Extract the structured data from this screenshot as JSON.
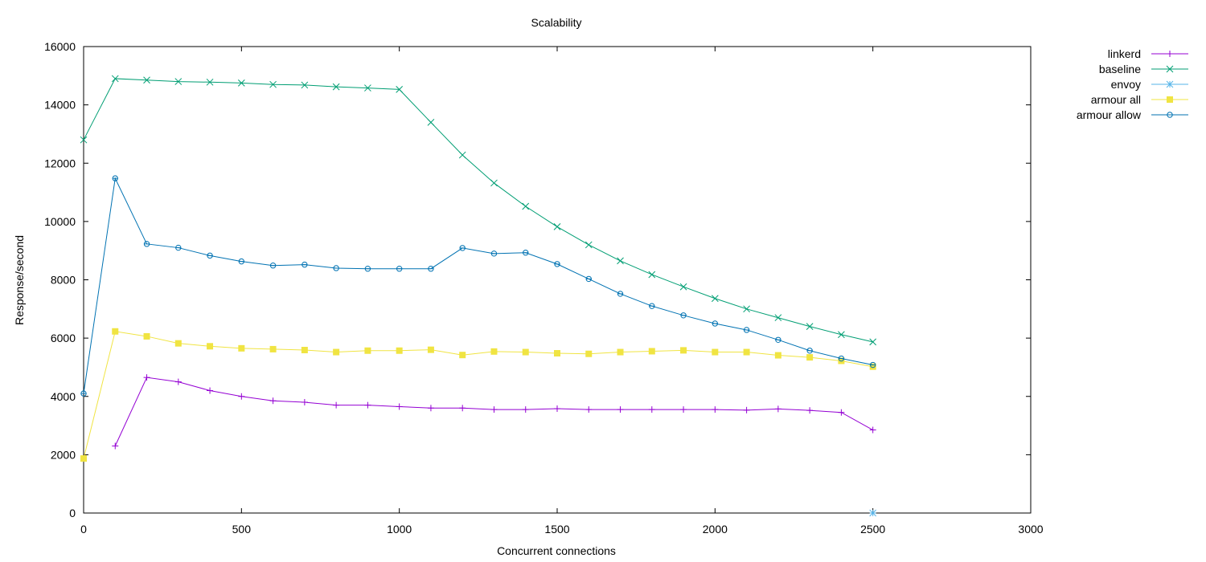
{
  "chart_data": {
    "type": "line",
    "title": "Scalability",
    "xlabel": "Concurrent connections",
    "ylabel": "Response/second",
    "xlim": [
      0,
      3000
    ],
    "ylim": [
      0,
      16000
    ],
    "xticks": [
      0,
      500,
      1000,
      1500,
      2000,
      2500,
      3000
    ],
    "yticks": [
      0,
      2000,
      4000,
      6000,
      8000,
      10000,
      12000,
      14000,
      16000
    ],
    "grid": false,
    "legend_position": "top-right, outside plot",
    "series": [
      {
        "name": "linkerd",
        "color": "#9400d3",
        "marker": "plus",
        "x": [
          100,
          200,
          300,
          400,
          500,
          600,
          700,
          800,
          900,
          1000,
          1100,
          1200,
          1300,
          1400,
          1500,
          1600,
          1700,
          1800,
          1900,
          2000,
          2100,
          2200,
          2300,
          2400,
          2500
        ],
        "y": [
          2300,
          4650,
          4500,
          4200,
          4000,
          3850,
          3800,
          3700,
          3700,
          3650,
          3600,
          3600,
          3550,
          3550,
          3580,
          3550,
          3550,
          3550,
          3550,
          3550,
          3530,
          3570,
          3520,
          3450,
          2850
        ]
      },
      {
        "name": "baseline",
        "color": "#009e73",
        "marker": "x",
        "x": [
          0,
          100,
          200,
          300,
          400,
          500,
          600,
          700,
          800,
          900,
          1000,
          1100,
          1200,
          1300,
          1400,
          1500,
          1600,
          1700,
          1800,
          1900,
          2000,
          2100,
          2200,
          2300,
          2400,
          2500
        ],
        "y": [
          12800,
          14900,
          14850,
          14800,
          14780,
          14750,
          14700,
          14680,
          14620,
          14580,
          14530,
          13400,
          12280,
          11320,
          10520,
          9820,
          9200,
          8650,
          8180,
          7760,
          7360,
          7000,
          6700,
          6400,
          6120,
          5870
        ]
      },
      {
        "name": "envoy",
        "color": "#56b4e9",
        "marker": "star",
        "x": [
          2500
        ],
        "y": [
          0
        ]
      },
      {
        "name": "armour all",
        "color": "#f0e442",
        "marker": "filled-square",
        "x": [
          0,
          100,
          200,
          300,
          400,
          500,
          600,
          700,
          800,
          900,
          1000,
          1100,
          1200,
          1300,
          1400,
          1500,
          1600,
          1700,
          1800,
          1900,
          2000,
          2100,
          2200,
          2300,
          2400,
          2500
        ],
        "y": [
          1870,
          6230,
          6060,
          5820,
          5720,
          5650,
          5620,
          5590,
          5520,
          5570,
          5570,
          5600,
          5420,
          5540,
          5520,
          5480,
          5460,
          5520,
          5550,
          5580,
          5520,
          5520,
          5410,
          5340,
          5220,
          5020
        ]
      },
      {
        "name": "armour allow",
        "color": "#0072b2",
        "marker": "circle",
        "x": [
          0,
          100,
          200,
          300,
          400,
          500,
          600,
          700,
          800,
          900,
          1000,
          1100,
          1200,
          1300,
          1400,
          1500,
          1600,
          1700,
          1800,
          1900,
          2000,
          2100,
          2200,
          2300,
          2400,
          2500
        ],
        "y": [
          4100,
          11480,
          9230,
          9100,
          8830,
          8630,
          8490,
          8520,
          8400,
          8380,
          8380,
          8380,
          9090,
          8900,
          8930,
          8540,
          8030,
          7520,
          7100,
          6780,
          6500,
          6280,
          5940,
          5570,
          5300,
          5080
        ]
      }
    ]
  }
}
